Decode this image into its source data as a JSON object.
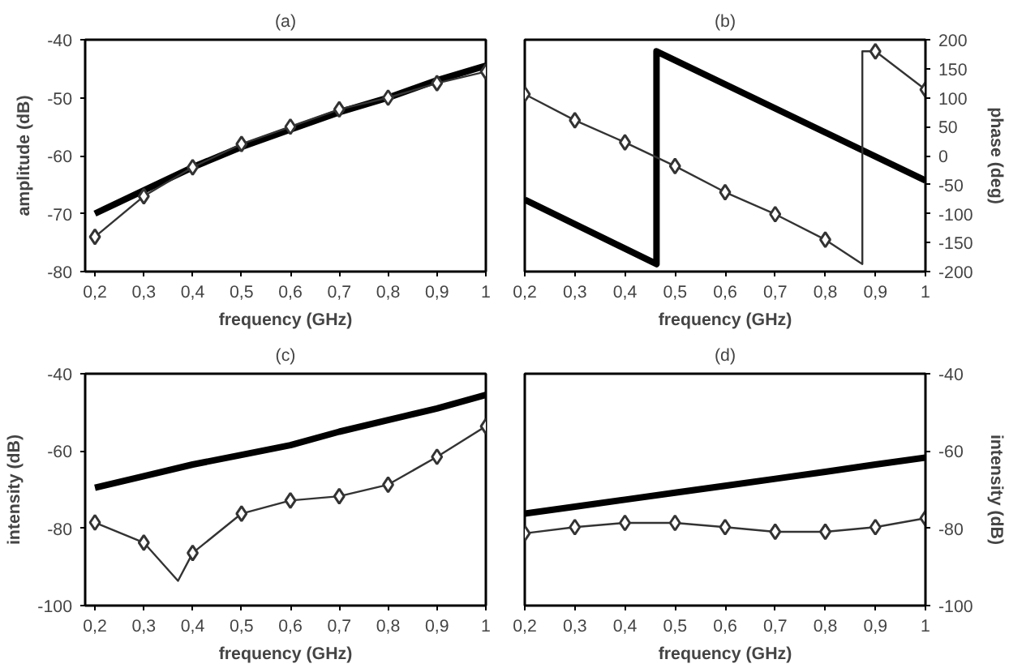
{
  "chart_data": [
    {
      "type": "line",
      "title": "(a)",
      "xlabel": "frequency (GHz)",
      "ylabel": "amplitude (dB)",
      "xlim": [
        0.18,
        1.0
      ],
      "xticks": [
        {
          "value": 0.2,
          "label": "0,2"
        },
        {
          "value": 0.3,
          "label": "0,3"
        },
        {
          "value": 0.4,
          "label": "0,4"
        },
        {
          "value": 0.5,
          "label": "0,5"
        },
        {
          "value": 0.6,
          "label": "0,6"
        },
        {
          "value": 0.7,
          "label": "0,7"
        },
        {
          "value": 0.8,
          "label": "0,8"
        },
        {
          "value": 0.9,
          "label": "0,9"
        },
        {
          "value": 1,
          "label": "1"
        }
      ],
      "ylim": [
        -80,
        -40
      ],
      "yticks": [
        -80,
        -70,
        -60,
        -50,
        -40
      ],
      "x": [
        0.2,
        0.3,
        0.4,
        0.5,
        0.6,
        0.7,
        0.8,
        0.9,
        1
      ],
      "series": [
        {
          "color": "#000000",
          "values": [
            -70,
            -66,
            -62,
            -58.5,
            -55.5,
            -52.5,
            -50,
            -47,
            -44.5
          ]
        },
        {
          "color": "#333333",
          "marker": "diamond",
          "values": [
            -74,
            -67,
            -62,
            -58,
            -55,
            -52,
            -50,
            -47.5,
            -45.5
          ]
        }
      ]
    },
    {
      "type": "line",
      "title": "(b)",
      "xlabel": "frequency (GHz)",
      "y2label": "phase (deg)",
      "xlim": [
        0.2,
        1.0
      ],
      "xticks": [
        {
          "value": 0.2,
          "label": "0,2"
        },
        {
          "value": 0.3,
          "label": "0,3"
        },
        {
          "value": 0.4,
          "label": "0,4"
        },
        {
          "value": 0.5,
          "label": "0,5"
        },
        {
          "value": 0.6,
          "label": "0,6"
        },
        {
          "value": 0.7,
          "label": "0,7"
        },
        {
          "value": 0.8,
          "label": "0,8"
        },
        {
          "value": 0.9,
          "label": "0,9"
        },
        {
          "value": 1,
          "label": "1"
        }
      ],
      "y2lim": [
        -200,
        200
      ],
      "y2ticks": [
        -200,
        -150,
        -100,
        -50,
        0,
        50,
        100,
        150,
        200
      ],
      "series": [
        {
          "color": "#000000",
          "axis": "y2",
          "x": [
            0.2,
            0.463,
            0.463,
            1
          ],
          "values": [
            -76,
            -187,
            180,
            -43
          ]
        },
        {
          "color": "#333333",
          "axis": "y2",
          "x": [
            0.2,
            0.3,
            0.4,
            0.5,
            0.6,
            0.7,
            0.8,
            0.874,
            0.874,
            0.9,
            1
          ],
          "values": [
            106,
            61,
            23,
            -18,
            -63,
            -101,
            -145,
            -187,
            180,
            180,
            114
          ]
        },
        {
          "type": "scatter",
          "color": "#333333",
          "axis": "y2",
          "marker": "diamond",
          "x": [
            0.2,
            0.3,
            0.4,
            0.5,
            0.6,
            0.7,
            0.8,
            0.9,
            1
          ],
          "values": [
            106,
            61,
            23,
            -18,
            -63,
            -101,
            -145,
            180,
            114
          ]
        }
      ]
    },
    {
      "type": "line",
      "title": "(c)",
      "xlabel": "frequency (GHz)",
      "ylabel": "intensity (dB)",
      "xlim": [
        0.18,
        1.0
      ],
      "xticks": [
        {
          "value": 0.2,
          "label": "0,2"
        },
        {
          "value": 0.3,
          "label": "0,3"
        },
        {
          "value": 0.4,
          "label": "0,4"
        },
        {
          "value": 0.5,
          "label": "0,5"
        },
        {
          "value": 0.6,
          "label": "0,6"
        },
        {
          "value": 0.7,
          "label": "0,7"
        },
        {
          "value": 0.8,
          "label": "0,8"
        },
        {
          "value": 0.9,
          "label": "0,9"
        },
        {
          "value": 1,
          "label": "1"
        }
      ],
      "ylim": [
        -100,
        -40
      ],
      "yticks": [
        -100,
        -80,
        -60,
        -40
      ],
      "series": [
        {
          "color": "#000000",
          "x": [
            0.2,
            0.3,
            0.4,
            0.5,
            0.6,
            0.7,
            0.8,
            0.9,
            1
          ],
          "values": [
            -69.5,
            -66.5,
            -63.5,
            -61,
            -58.5,
            -55,
            -52,
            -49,
            -45.5
          ]
        },
        {
          "color": "#333333",
          "x": [
            0.2,
            0.3,
            0.37,
            0.4,
            0.5,
            0.6,
            0.7,
            0.8,
            0.9,
            1
          ],
          "values": [
            -78.5,
            -83.7,
            -93.6,
            -86.4,
            -76.2,
            -72.8,
            -71.7,
            -68.7,
            -61.5,
            -53.6
          ]
        },
        {
          "type": "scatter",
          "color": "#333333",
          "marker": "diamond",
          "x": [
            0.2,
            0.3,
            0.4,
            0.5,
            0.6,
            0.7,
            0.8,
            0.9,
            1
          ],
          "values": [
            -78.5,
            -83.7,
            -86.4,
            -76.2,
            -72.8,
            -71.7,
            -68.7,
            -61.5,
            -53.6
          ]
        }
      ]
    },
    {
      "type": "line",
      "title": "(d)",
      "xlabel": "frequency (GHz)",
      "y2label": "intensity (dB)",
      "xlim": [
        0.2,
        1.0
      ],
      "xticks": [
        {
          "value": 0.2,
          "label": "0,2"
        },
        {
          "value": 0.3,
          "label": "0,3"
        },
        {
          "value": 0.4,
          "label": "0,4"
        },
        {
          "value": 0.5,
          "label": "0,5"
        },
        {
          "value": 0.6,
          "label": "0,6"
        },
        {
          "value": 0.7,
          "label": "0,7"
        },
        {
          "value": 0.8,
          "label": "0,8"
        },
        {
          "value": 0.9,
          "label": "0,9"
        },
        {
          "value": 1,
          "label": "1"
        }
      ],
      "y2lim": [
        -100,
        -40
      ],
      "y2ticks": [
        -100,
        -80,
        -60,
        -40
      ],
      "x": [
        0.2,
        0.3,
        0.4,
        0.5,
        0.6,
        0.7,
        0.8,
        0.9,
        1
      ],
      "series": [
        {
          "color": "#000000",
          "axis": "y2",
          "values": [
            -76.2,
            -74.4,
            -72.6,
            -70.8,
            -69,
            -67.2,
            -65.4,
            -63.5,
            -61.7
          ]
        },
        {
          "color": "#333333",
          "axis": "y2",
          "marker": "diamond",
          "values": [
            -81.3,
            -79.7,
            -78.6,
            -78.6,
            -79.7,
            -80.9,
            -80.9,
            -79.7,
            -77.4
          ]
        }
      ]
    }
  ]
}
